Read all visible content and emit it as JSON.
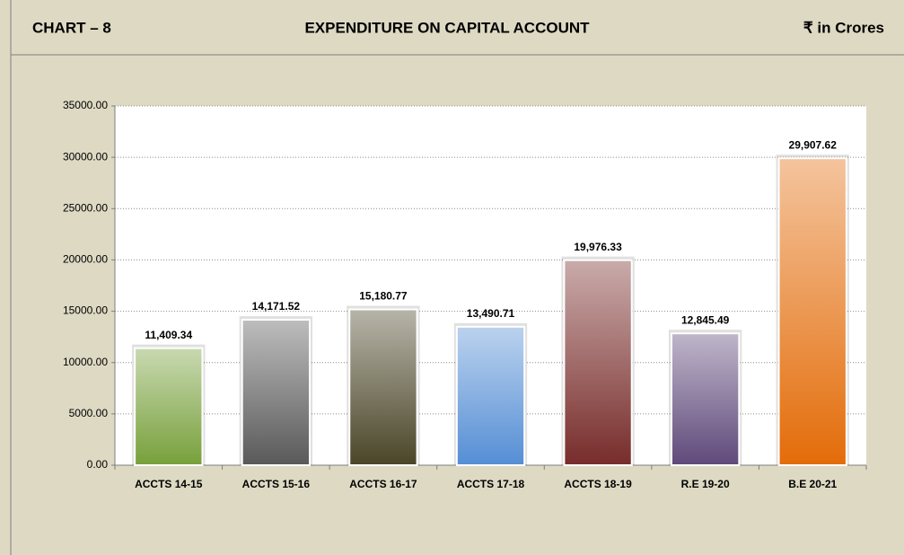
{
  "chart_data": {
    "type": "bar",
    "chart_label": "CHART – 8",
    "title": "EXPENDITURE ON CAPITAL ACCOUNT",
    "unit_label": "₹ in Crores",
    "categories": [
      "ACCTS 14-15",
      "ACCTS 15-16",
      "ACCTS 16-17",
      "ACCTS 17-18",
      "ACCTS 18-19",
      "R.E 19-20",
      "B.E 20-21"
    ],
    "values": [
      11409.34,
      14171.52,
      15180.77,
      13490.71,
      19976.33,
      12845.49,
      29907.62
    ],
    "value_labels": [
      "11,409.34",
      "14,171.52",
      "15,180.77",
      "13,490.71",
      "19,976.33",
      "12,845.49",
      "29,907.62"
    ],
    "colors": [
      "#77a03b",
      "#595959",
      "#4a4528",
      "#558ed5",
      "#772c2a",
      "#5f497a",
      "#e36c09"
    ],
    "ylim": [
      0,
      35000
    ],
    "yticks": [
      {
        "value": 0,
        "label": "0.00"
      },
      {
        "value": 5000,
        "label": "5000.00"
      },
      {
        "value": 10000,
        "label": "10000.00"
      },
      {
        "value": 15000,
        "label": "15000.00"
      },
      {
        "value": 20000,
        "label": "20000.00"
      },
      {
        "value": 25000,
        "label": "25000.00"
      },
      {
        "value": 30000,
        "label": "30000.00"
      },
      {
        "value": 35000,
        "label": "35000.00"
      }
    ],
    "grid": true
  }
}
